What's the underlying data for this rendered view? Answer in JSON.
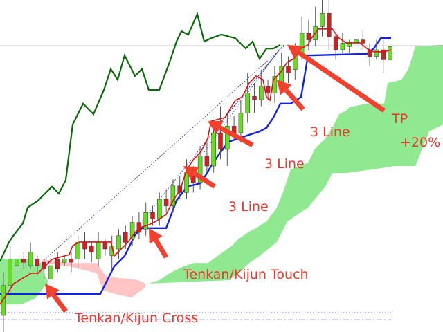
{
  "chart_data": {
    "type": "candlestick",
    "title": "",
    "xlabel": "",
    "ylabel": "",
    "xlim": [
      0,
      64
    ],
    "ylim": [
      0,
      100
    ],
    "grid": false,
    "colors": {
      "bull_candle": "#66dd22",
      "bear_candle": "#cc2222",
      "tenkan": "#e01010",
      "kijun": "#1022dd",
      "chikou": "#0a6a0a",
      "cloud_bull": "#90e890",
      "cloud_bear": "#ffc4c4",
      "arrow": "#f0412e",
      "annotation_text": "#e8392b",
      "price_line": "#9a9a9a",
      "level_lines": "#5560cc"
    },
    "candles": [
      [
        5,
        14,
        18,
        0
      ],
      [
        14,
        22,
        26,
        12
      ],
      [
        20,
        22,
        25,
        18
      ],
      [
        22,
        21,
        24,
        19
      ],
      [
        20,
        24,
        27,
        19
      ],
      [
        22,
        20,
        23,
        17
      ],
      [
        21,
        19,
        22,
        16
      ],
      [
        16,
        20,
        23,
        13
      ],
      [
        22,
        19,
        24,
        18
      ],
      [
        21,
        22,
        23,
        20
      ],
      [
        22,
        21,
        24,
        18
      ],
      [
        22,
        27,
        29,
        19
      ],
      [
        27,
        25,
        30,
        22
      ],
      [
        26,
        24,
        27,
        21
      ],
      [
        22,
        27,
        30,
        20
      ],
      [
        27,
        25,
        28,
        23
      ],
      [
        23,
        26,
        29,
        19
      ],
      [
        25,
        29,
        31,
        22
      ],
      [
        30,
        27,
        32,
        25
      ],
      [
        28,
        33,
        35,
        26
      ],
      [
        33,
        30,
        36,
        28
      ],
      [
        31,
        36,
        39,
        29
      ],
      [
        36,
        34,
        38,
        32
      ],
      [
        34,
        40,
        42,
        32
      ],
      [
        40,
        38,
        43,
        36
      ],
      [
        38,
        44,
        46,
        36
      ],
      [
        44,
        42,
        47,
        40
      ],
      [
        42,
        48,
        52,
        40
      ],
      [
        47,
        45,
        50,
        42
      ],
      [
        45,
        53,
        56,
        43
      ],
      [
        53,
        50,
        58,
        48
      ],
      [
        50,
        60,
        62,
        48
      ],
      [
        60,
        55,
        68,
        52
      ],
      [
        55,
        62,
        66,
        50
      ],
      [
        62,
        60,
        65,
        58
      ],
      [
        60,
        66,
        70,
        57
      ],
      [
        66,
        72,
        78,
        63
      ],
      [
        71,
        70,
        75,
        66
      ],
      [
        70,
        74,
        79,
        68
      ],
      [
        74,
        72,
        76,
        70
      ],
      [
        72,
        77,
        80,
        69
      ],
      [
        75,
        80,
        84,
        72
      ],
      [
        80,
        78,
        83,
        75
      ],
      [
        79,
        84,
        87,
        76
      ],
      [
        84,
        90,
        95,
        82
      ],
      [
        90,
        88,
        94,
        85
      ],
      [
        88,
        92,
        98,
        86
      ],
      [
        92,
        96,
        100,
        89
      ],
      [
        96,
        89,
        100,
        85
      ],
      [
        89,
        85,
        90,
        82
      ],
      [
        85,
        87,
        90,
        84
      ],
      [
        86,
        87,
        88,
        84
      ],
      [
        87,
        88,
        90,
        84
      ],
      [
        88,
        87,
        91,
        85
      ],
      [
        85,
        83,
        87,
        80
      ],
      [
        83,
        85,
        88,
        82
      ],
      [
        85,
        82,
        88,
        78
      ],
      [
        82,
        86,
        90,
        80
      ]
    ],
    "candle_format": [
      "open",
      "close",
      "high",
      "low"
    ],
    "series": {
      "kijun": [
        [
          0,
          11.5
        ],
        [
          14.5,
          11.5
        ],
        [
          16.5,
          19.8
        ],
        [
          18,
          22.9
        ],
        [
          19.5,
          29.2
        ],
        [
          20.5,
          31.3
        ],
        [
          24,
          31.3
        ],
        [
          25.5,
          39.6
        ],
        [
          27,
          43.8
        ],
        [
          29,
          44.8
        ],
        [
          30.5,
          50
        ],
        [
          31.5,
          53.1
        ],
        [
          33,
          57.3
        ],
        [
          34.5,
          58.3
        ],
        [
          36,
          59.4
        ],
        [
          37.5,
          60.4
        ],
        [
          38.5,
          61.5
        ],
        [
          39.5,
          64.6
        ],
        [
          40.5,
          68.8
        ],
        [
          42,
          68.8
        ],
        [
          43.5,
          70.8
        ],
        [
          44.5,
          83.3
        ],
        [
          53,
          83.8
        ],
        [
          54,
          85.4
        ],
        [
          55,
          88.5
        ],
        [
          56.5,
          88.5
        ]
      ],
      "tenkan": [
        [
          0,
          8.3
        ],
        [
          2,
          14.6
        ],
        [
          4.5,
          17.7
        ],
        [
          5.5,
          17.7
        ],
        [
          6.5,
          19.8
        ],
        [
          7.5,
          21.9
        ],
        [
          10,
          23.3
        ],
        [
          10.5,
          26
        ],
        [
          11.5,
          27.1
        ],
        [
          16,
          27.1
        ],
        [
          16.5,
          22.9
        ],
        [
          17.5,
          25
        ],
        [
          18.5,
          27.1
        ],
        [
          20,
          31.3
        ],
        [
          21.5,
          32.3
        ],
        [
          22.5,
          33.3
        ],
        [
          24,
          35.4
        ],
        [
          25,
          39.6
        ],
        [
          26,
          42.7
        ],
        [
          27,
          49
        ],
        [
          28,
          52.1
        ],
        [
          29,
          54.2
        ],
        [
          30,
          58.3
        ],
        [
          30.5,
          63.5
        ],
        [
          32.5,
          64.6
        ],
        [
          34,
          69.8
        ],
        [
          35,
          70.8
        ],
        [
          36,
          75
        ],
        [
          37,
          77.1
        ],
        [
          38,
          76
        ],
        [
          38.5,
          70.8
        ],
        [
          39,
          69.8
        ],
        [
          39.5,
          76
        ],
        [
          40.5,
          78.1
        ],
        [
          41.5,
          81.3
        ],
        [
          42.5,
          82.3
        ],
        [
          43.5,
          85.4
        ],
        [
          44.5,
          86.5
        ],
        [
          45,
          88.5
        ],
        [
          46,
          91.3
        ],
        [
          48,
          91.3
        ],
        [
          49,
          88.5
        ],
        [
          50,
          87.1
        ],
        [
          52,
          87.1
        ],
        [
          53,
          85.4
        ],
        [
          54,
          84.4
        ],
        [
          55.5,
          84.4
        ],
        [
          56.5,
          85
        ]
      ],
      "chikou": [
        [
          0,
          21.3
        ],
        [
          1.3,
          27.1
        ],
        [
          2,
          29.2
        ],
        [
          3.3,
          32.7
        ],
        [
          4,
          37.5
        ],
        [
          5.5,
          39.6
        ],
        [
          7.5,
          43.8
        ],
        [
          8.5,
          41.7
        ],
        [
          9.5,
          45.8
        ],
        [
          10.5,
          62.5
        ],
        [
          12,
          68.8
        ],
        [
          13.5,
          65.6
        ],
        [
          15,
          72.9
        ],
        [
          16,
          79.2
        ],
        [
          17,
          76
        ],
        [
          18,
          83.3
        ],
        [
          19.5,
          77.1
        ],
        [
          20.5,
          79.2
        ],
        [
          21.5,
          72.9
        ],
        [
          23,
          72.9
        ],
        [
          24.5,
          81.3
        ],
        [
          25.5,
          87.5
        ],
        [
          26.2,
          90.6
        ],
        [
          27.2,
          89.6
        ],
        [
          28.5,
          95.8
        ],
        [
          29.5,
          87.5
        ],
        [
          30.5,
          88.5
        ],
        [
          32,
          89.6
        ],
        [
          34,
          88.5
        ],
        [
          35.5,
          85.4
        ],
        [
          36.5,
          87.5
        ],
        [
          37.5,
          82.3
        ],
        [
          38.5,
          85.4
        ],
        [
          39.5,
          85.4
        ],
        [
          40.5,
          86.5
        ]
      ]
    },
    "clouds": [
      {
        "kind": "bull",
        "points": [
          [
            21.5,
            14.6
          ],
          [
            23,
            15.6
          ],
          [
            24.5,
            17.7
          ],
          [
            26.5,
            19.8
          ],
          [
            28,
            20.8
          ],
          [
            30,
            20.8
          ],
          [
            33.5,
            26
          ],
          [
            34.5,
            28.1
          ],
          [
            36,
            30.2
          ],
          [
            37,
            31.3
          ],
          [
            38.5,
            33.3
          ],
          [
            40,
            37.5
          ],
          [
            41,
            42.7
          ],
          [
            42,
            49
          ],
          [
            44.5,
            51
          ],
          [
            45.5,
            55.2
          ],
          [
            47,
            58.3
          ],
          [
            48,
            61.5
          ],
          [
            49,
            65.6
          ],
          [
            50,
            66.7
          ],
          [
            50.5,
            67.7
          ],
          [
            53,
            68.8
          ],
          [
            55.5,
            68.8
          ],
          [
            56,
            75
          ],
          [
            58,
            76
          ],
          [
            59,
            79.2
          ],
          [
            60,
            86
          ],
          [
            64,
            86.5
          ],
          [
            64,
            62.5
          ],
          [
            62,
            60.4
          ],
          [
            60,
            50
          ],
          [
            57,
            50
          ],
          [
            54,
            49
          ],
          [
            50,
            47.9
          ],
          [
            48,
            47.9
          ],
          [
            47,
            43.8
          ],
          [
            44.5,
            37.5
          ],
          [
            43,
            35.4
          ],
          [
            41.5,
            33.3
          ],
          [
            40,
            27.1
          ],
          [
            37.5,
            22.9
          ],
          [
            36,
            20.8
          ],
          [
            34.5,
            17.7
          ],
          [
            33,
            15.6
          ],
          [
            21.5,
            14.6
          ]
        ]
      },
      {
        "kind": "bull",
        "points": [
          [
            0,
            22
          ],
          [
            4,
            22
          ],
          [
            5,
            20
          ],
          [
            6,
            21
          ],
          [
            6.5,
            17
          ],
          [
            7,
            15
          ],
          [
            5,
            10
          ],
          [
            3,
            8.3
          ],
          [
            0,
            8.3
          ]
        ]
      },
      {
        "kind": "bear",
        "points": [
          [
            6.2,
            21.9
          ],
          [
            10,
            20.8
          ],
          [
            14,
            20.8
          ],
          [
            15,
            17.7
          ],
          [
            15.5,
            16.7
          ],
          [
            20,
            15.6
          ],
          [
            21,
            14.6
          ],
          [
            21,
            13.5
          ],
          [
            19,
            10.4
          ],
          [
            16.5,
            11.5
          ],
          [
            15,
            12.5
          ],
          [
            14.5,
            14.6
          ],
          [
            14,
            17.7
          ],
          [
            10,
            19.8
          ],
          [
            6.2,
            20.8
          ]
        ]
      }
    ],
    "trendlines": [
      [
        [
          6,
          21
        ],
        [
          41,
          86
        ]
      ],
      [
        [
          20.5,
          33.3
        ],
        [
          40.5,
          85.4
        ]
      ],
      [
        [
          29.5,
          54.2
        ],
        [
          40.5,
          85.4
        ]
      ],
      [
        [
          30,
          58.3
        ],
        [
          41,
          86.5
        ]
      ]
    ],
    "horizontal_lines": [
      {
        "style": "solid",
        "value": 86.2
      },
      {
        "style": "dotted",
        "value": 5.8
      },
      {
        "style": "dashdot",
        "value": 3.7
      }
    ],
    "arrows": [
      [
        [
          9.5,
          6.25
        ],
        [
          6.5,
          14.6
        ]
      ],
      [
        [
          24,
          22.5
        ],
        [
          21.5,
          31.3
        ]
      ],
      [
        [
          31,
          43.8
        ],
        [
          26.5,
          50
        ]
      ],
      [
        [
          36.5,
          56.3
        ],
        [
          30,
          63.5
        ]
      ],
      [
        [
          43.8,
          67.1
        ],
        [
          40,
          76
        ]
      ],
      [
        [
          55.5,
          66.7
        ],
        [
          41.5,
          86.5
        ]
      ]
    ],
    "annotations": {
      "tp": "TP",
      "tp_pct": "+20%",
      "line1": "3 Line",
      "line2": "3 Line",
      "line3": "3 Line",
      "touch": "Tenkan/Kijun Touch",
      "cross": "Tenkan/Kijun Cross"
    }
  }
}
